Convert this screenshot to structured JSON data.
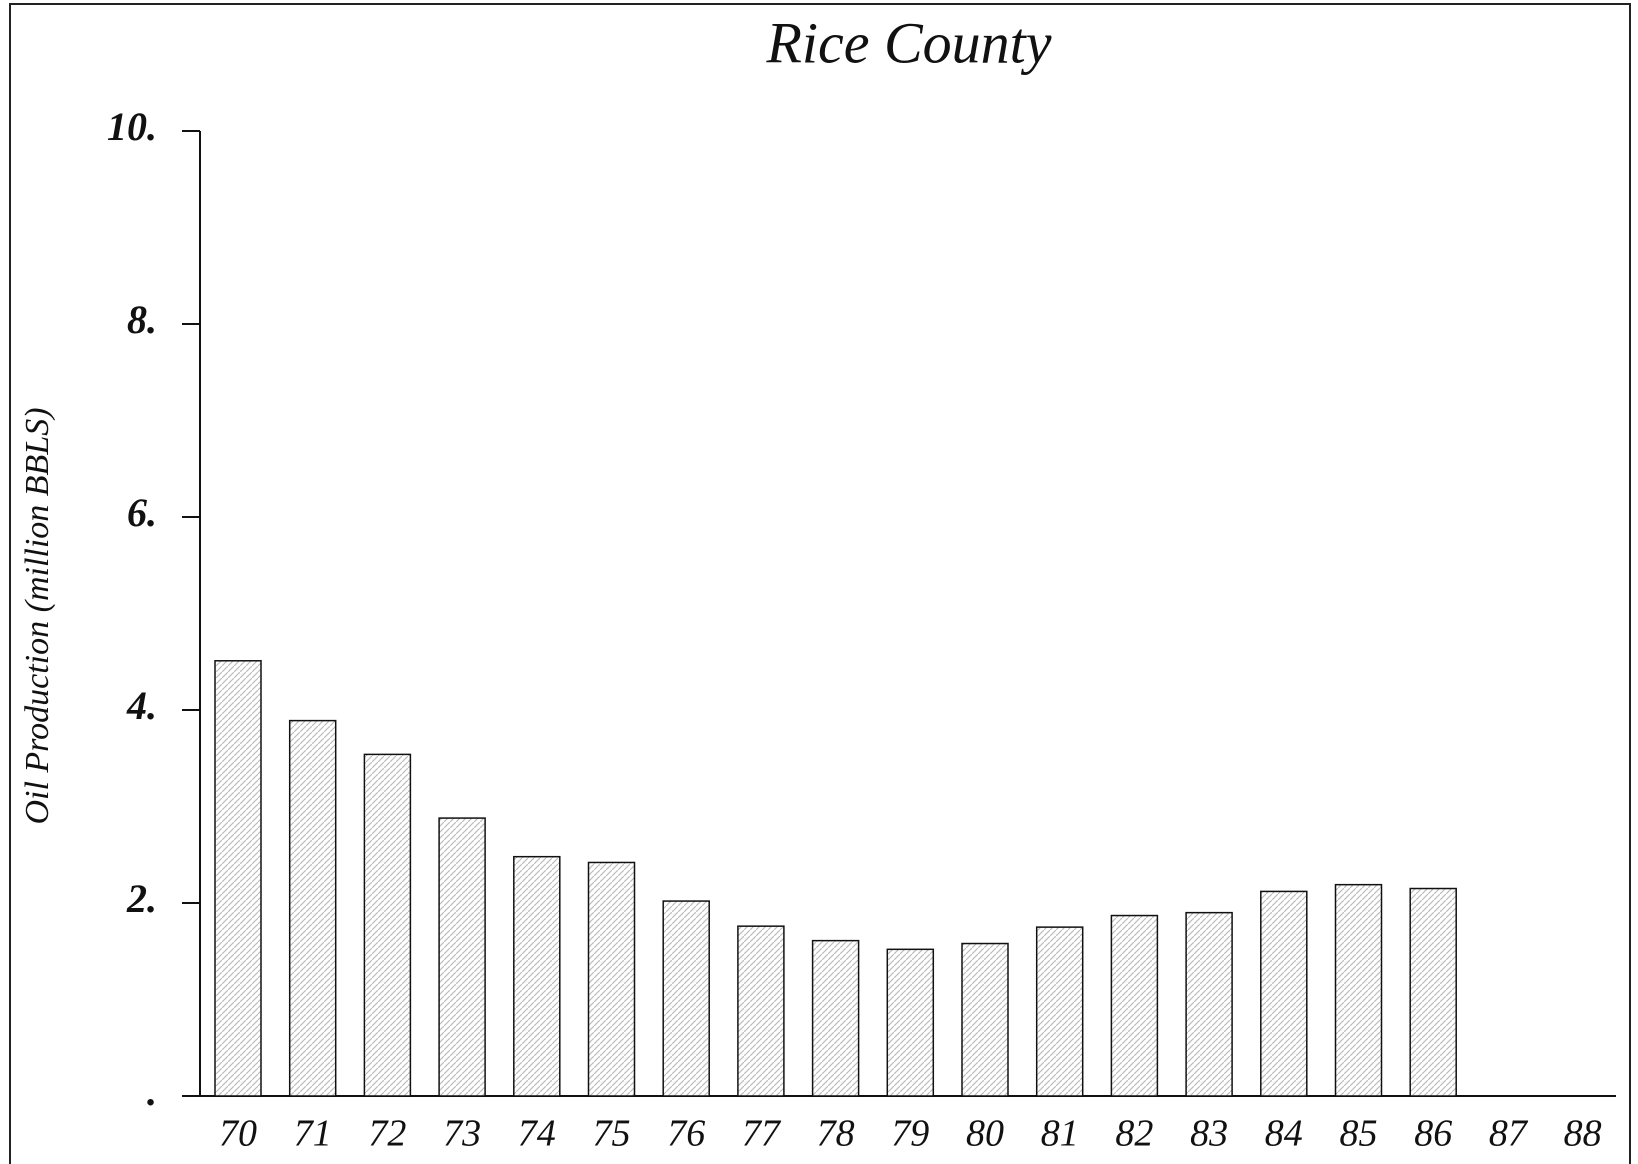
{
  "chart_data": {
    "type": "bar",
    "title": "Rice County",
    "y_label": "Oil Production (million BBLS)",
    "categories": [
      "70",
      "71",
      "72",
      "73",
      "74",
      "75",
      "76",
      "77",
      "78",
      "79",
      "80",
      "81",
      "82",
      "83",
      "84",
      "85",
      "86",
      "87",
      "88"
    ],
    "values": [
      4.51,
      3.89,
      3.54,
      2.88,
      2.48,
      2.42,
      2.02,
      1.76,
      1.61,
      1.52,
      1.58,
      1.75,
      1.87,
      1.9,
      2.12,
      2.19,
      2.15,
      0,
      0
    ],
    "color": "#bdbdbd",
    "ylim": [
      0,
      10
    ],
    "yticks": [
      {
        "value": 0,
        "label": "."
      },
      {
        "value": 2,
        "label": "2."
      },
      {
        "value": 4,
        "label": "4."
      },
      {
        "value": 6,
        "label": "6."
      },
      {
        "value": 8,
        "label": "8."
      },
      {
        "value": 10,
        "label": "10."
      }
    ],
    "grid": false
  }
}
